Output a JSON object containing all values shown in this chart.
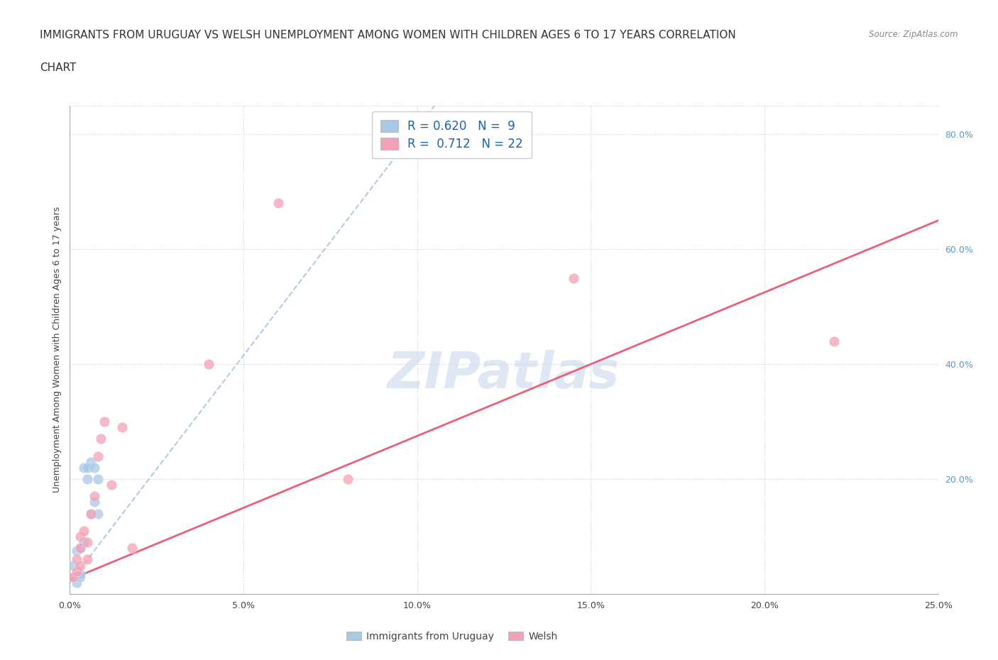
{
  "title_line1": "IMMIGRANTS FROM URUGUAY VS WELSH UNEMPLOYMENT AMONG WOMEN WITH CHILDREN AGES 6 TO 17 YEARS CORRELATION",
  "title_line2": "CHART",
  "source_text": "Source: ZipAtlas.com",
  "ylabel": "Unemployment Among Women with Children Ages 6 to 17 years",
  "watermark": "ZIPatlas",
  "xlim": [
    0.0,
    0.25
  ],
  "ylim": [
    0.0,
    0.85
  ],
  "xticks": [
    0.0,
    0.05,
    0.1,
    0.15,
    0.2,
    0.25
  ],
  "xticklabels": [
    "0.0%",
    "5.0%",
    "10.0%",
    "15.0%",
    "20.0%",
    "25.0%"
  ],
  "yticks_right": [
    0.2,
    0.4,
    0.6,
    0.8
  ],
  "yticklabels_right": [
    "20.0%",
    "40.0%",
    "60.0%",
    "80.0%"
  ],
  "legend_label1": "Immigrants from Uruguay",
  "legend_label2": "Welsh",
  "color_blue": "#a8c8e8",
  "color_blue_line": "#7ab0d4",
  "color_pink": "#f4a0b5",
  "color_pink_line": "#e8607a",
  "grid_color": "#cccccc",
  "background_color": "#ffffff",
  "uruguay_x": [
    0.001,
    0.002,
    0.001,
    0.003,
    0.002,
    0.003,
    0.004,
    0.005,
    0.004,
    0.006,
    0.005,
    0.007,
    0.006,
    0.007,
    0.008,
    0.008,
    0.003
  ],
  "uruguay_y": [
    0.03,
    0.02,
    0.05,
    0.03,
    0.075,
    0.08,
    0.09,
    0.2,
    0.22,
    0.23,
    0.22,
    0.22,
    0.14,
    0.16,
    0.2,
    0.14,
    0.035
  ],
  "welsh_x": [
    0.001,
    0.002,
    0.002,
    0.003,
    0.003,
    0.003,
    0.004,
    0.005,
    0.005,
    0.006,
    0.007,
    0.008,
    0.009,
    0.01,
    0.012,
    0.015,
    0.018,
    0.04,
    0.06,
    0.08,
    0.145,
    0.22
  ],
  "welsh_y": [
    0.03,
    0.04,
    0.06,
    0.05,
    0.08,
    0.1,
    0.11,
    0.06,
    0.09,
    0.14,
    0.17,
    0.24,
    0.27,
    0.3,
    0.19,
    0.29,
    0.08,
    0.4,
    0.68,
    0.2,
    0.55,
    0.44
  ],
  "blue_trend_x": [
    0.0,
    0.105
  ],
  "blue_trend_y": [
    0.02,
    0.85
  ],
  "pink_trend_x": [
    0.0,
    0.25
  ],
  "pink_trend_y": [
    0.025,
    0.65
  ],
  "title_fontsize": 11,
  "axis_label_fontsize": 9
}
